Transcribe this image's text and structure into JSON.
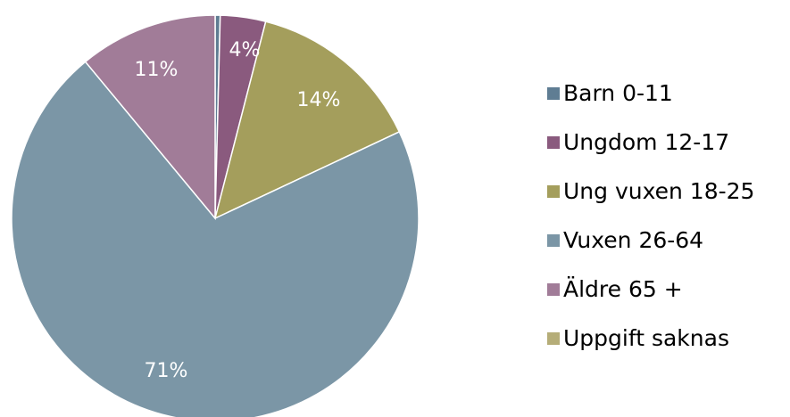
{
  "chart_data": {
    "type": "pie",
    "title": "",
    "legend_position": "right",
    "start_angle": "top",
    "direction": "clockwise",
    "slices": [
      {
        "name": "Barn 0-11",
        "value": 0.4,
        "label": "",
        "color": "#5f7d93"
      },
      {
        "name": "Ungdom 12-17",
        "value": 3.6,
        "label": "4%",
        "color": "#8a5a7e"
      },
      {
        "name": "Ung vuxen 18-25",
        "value": 14.0,
        "label": "14%",
        "color": "#a49e5c"
      },
      {
        "name": "Vuxen 26-64",
        "value": 71.0,
        "label": "71%",
        "color": "#7b96a6"
      },
      {
        "name": "Äldre 65 +",
        "value": 11.0,
        "label": "11%",
        "color": "#a17c98"
      },
      {
        "name": "Uppgift saknas",
        "value": 0.0,
        "label": "",
        "color": "#b5ad78"
      }
    ]
  }
}
